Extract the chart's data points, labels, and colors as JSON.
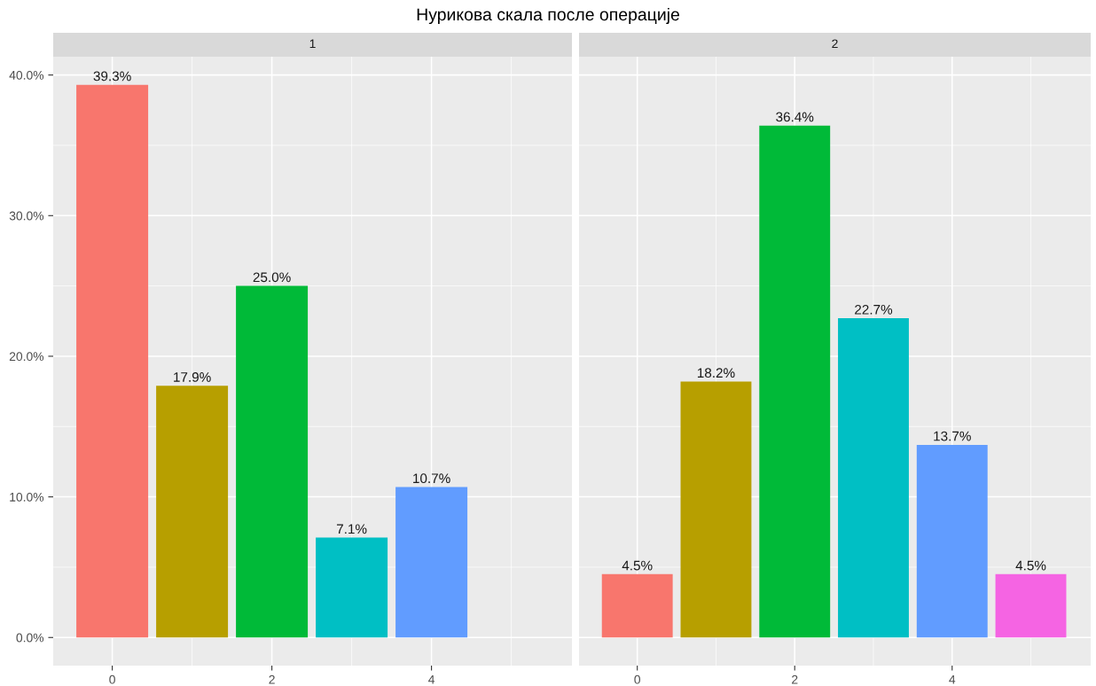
{
  "chart_data": [
    {
      "type": "bar",
      "title": "Нурикова скала после операције",
      "subtitle": "1",
      "x": [
        0,
        1,
        2,
        3,
        4
      ],
      "values": [
        39.3,
        17.9,
        25.0,
        7.1,
        10.7
      ],
      "value_labels": [
        "39.3%",
        "17.9%",
        "25.0%",
        "7.1%",
        "10.7%"
      ],
      "colors": [
        "#f8766d",
        "#b79f00",
        "#00ba38",
        "#00bfc4",
        "#619cff"
      ],
      "xlim": [
        -0.74,
        5.76
      ],
      "xticks": [
        0,
        2,
        4
      ],
      "ylim": [
        -2.0,
        41.3
      ],
      "yticks": [
        {
          "value": 0,
          "label": "0.0%"
        },
        {
          "value": 10,
          "label": "10.0%"
        },
        {
          "value": 20,
          "label": "20.0%"
        },
        {
          "value": 30,
          "label": "30.0%"
        },
        {
          "value": 40,
          "label": "40.0%"
        }
      ],
      "grid": true
    },
    {
      "type": "bar",
      "subtitle": "2",
      "x": [
        0,
        1,
        2,
        3,
        4,
        5
      ],
      "values": [
        4.5,
        18.2,
        36.4,
        22.7,
        13.7,
        4.5
      ],
      "value_labels": [
        "4.5%",
        "18.2%",
        "36.4%",
        "22.7%",
        "13.7%",
        "4.5%"
      ],
      "colors": [
        "#f8766d",
        "#b79f00",
        "#00ba38",
        "#00bfc4",
        "#619cff",
        "#f564e3"
      ],
      "xlim": [
        -0.74,
        5.76
      ],
      "xticks": [
        0,
        2,
        4
      ],
      "ylim": [
        -2.0,
        41.3
      ],
      "yticks": [
        0,
        10,
        20,
        30,
        40
      ],
      "grid": true,
      "tick_labels": "x"
    }
  ]
}
